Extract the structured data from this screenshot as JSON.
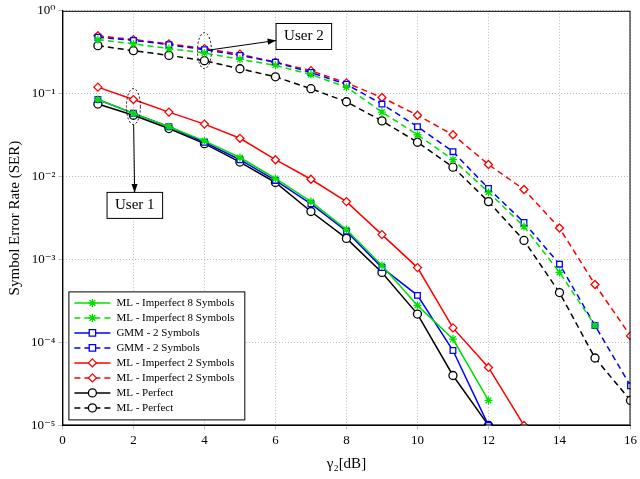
{
  "chart_data": {
    "type": "line",
    "x_label": "γ₂[dB]",
    "y_label": "Symbol Error Rate (SER)",
    "log": "y",
    "grid": true,
    "legend": "lower left",
    "x": [
      1,
      2,
      3,
      4,
      5,
      6,
      7,
      8,
      9,
      10,
      11,
      12,
      13,
      14,
      15,
      16
    ],
    "xlim": [
      0,
      16
    ],
    "xticks": [
      0,
      2,
      4,
      6,
      8,
      10,
      12,
      14,
      16
    ],
    "ylim": [
      1e-05,
      1
    ],
    "yticks": [
      {
        "value": 1e-05,
        "label": "10⁻⁵"
      },
      {
        "value": 0.0001,
        "label": "10⁻⁴"
      },
      {
        "value": 0.001,
        "label": "10⁻³"
      },
      {
        "value": 0.01,
        "label": "10⁻²"
      },
      {
        "value": 0.1,
        "label": "10⁻¹"
      },
      {
        "value": 1,
        "label": "10⁰"
      }
    ],
    "series": [
      {
        "name": "ML - Imperfect 8 Symbols",
        "color": "#00e000",
        "marker": "star",
        "line_style": "solid",
        "values": [
          0.085,
          0.058,
          0.04,
          0.027,
          0.017,
          0.0095,
          0.005,
          0.0023,
          0.00085,
          0.00028,
          0.00011,
          2e-05,
          null,
          null,
          null,
          null
        ]
      },
      {
        "name": "ML - Imperfect 8 Symbols",
        "color": "#00e000",
        "marker": "star",
        "line_style": "dashed",
        "values": [
          0.45,
          0.4,
          0.35,
          0.31,
          0.26,
          0.22,
          0.17,
          0.12,
          0.06,
          0.032,
          0.016,
          0.0065,
          0.0025,
          0.0007,
          0.00016,
          null
        ]
      },
      {
        "name": "GMM - 2 Symbols",
        "color": "#0000ff",
        "marker": "square",
        "line_style": "solid",
        "values": [
          0.085,
          0.058,
          0.04,
          0.026,
          0.016,
          0.009,
          0.0047,
          0.0022,
          0.0008,
          0.00037,
          8e-05,
          1e-05,
          null,
          null,
          null,
          null
        ]
      },
      {
        "name": "GMM - 2 Symbols",
        "color": "#0000ff",
        "marker": "square",
        "line_style": "dashed",
        "values": [
          0.48,
          0.44,
          0.39,
          0.34,
          0.29,
          0.24,
          0.18,
          0.13,
          0.075,
          0.04,
          0.02,
          0.0072,
          0.0028,
          0.00088,
          0.00016,
          3e-05
        ]
      },
      {
        "name": "ML - Imperfect 2 Symbols",
        "color": "#ff0000",
        "marker": "diamond",
        "line_style": "solid",
        "values": [
          0.12,
          0.085,
          0.06,
          0.043,
          0.029,
          0.016,
          0.0093,
          0.005,
          0.002,
          0.0008,
          0.00015,
          5e-05,
          1e-05,
          null,
          null,
          null
        ]
      },
      {
        "name": "ML - Imperfect 2 Symbols",
        "color": "#ff0000",
        "marker": "diamond",
        "line_style": "dashed",
        "values": [
          0.5,
          0.45,
          0.4,
          0.35,
          0.3,
          0.24,
          0.19,
          0.135,
          0.09,
          0.055,
          0.032,
          0.014,
          0.007,
          0.0024,
          0.0005,
          0.00012
        ]
      },
      {
        "name": "ML - Perfect",
        "color": "#000000",
        "marker": "circle",
        "line_style": "solid",
        "values": [
          0.075,
          0.055,
          0.038,
          0.025,
          0.015,
          0.0085,
          0.0038,
          0.0018,
          0.0007,
          0.00022,
          4e-05,
          1e-05,
          null,
          null,
          null,
          null
        ]
      },
      {
        "name": "ML - Perfect",
        "color": "#000000",
        "marker": "circle",
        "line_style": "dashed",
        "values": [
          0.38,
          0.33,
          0.29,
          0.25,
          0.2,
          0.16,
          0.115,
          0.08,
          0.047,
          0.026,
          0.013,
          0.005,
          0.0017,
          0.0004,
          6.5e-05,
          2e-05
        ]
      }
    ],
    "annotations": [
      {
        "text": "User 1",
        "x": 2.04,
        "y": 0.0045,
        "target_x": 2,
        "target_y": 0.07
      },
      {
        "text": "User 2",
        "x": 6.8,
        "y": 0.49,
        "target_x": 4,
        "target_y": 0.33
      }
    ]
  }
}
